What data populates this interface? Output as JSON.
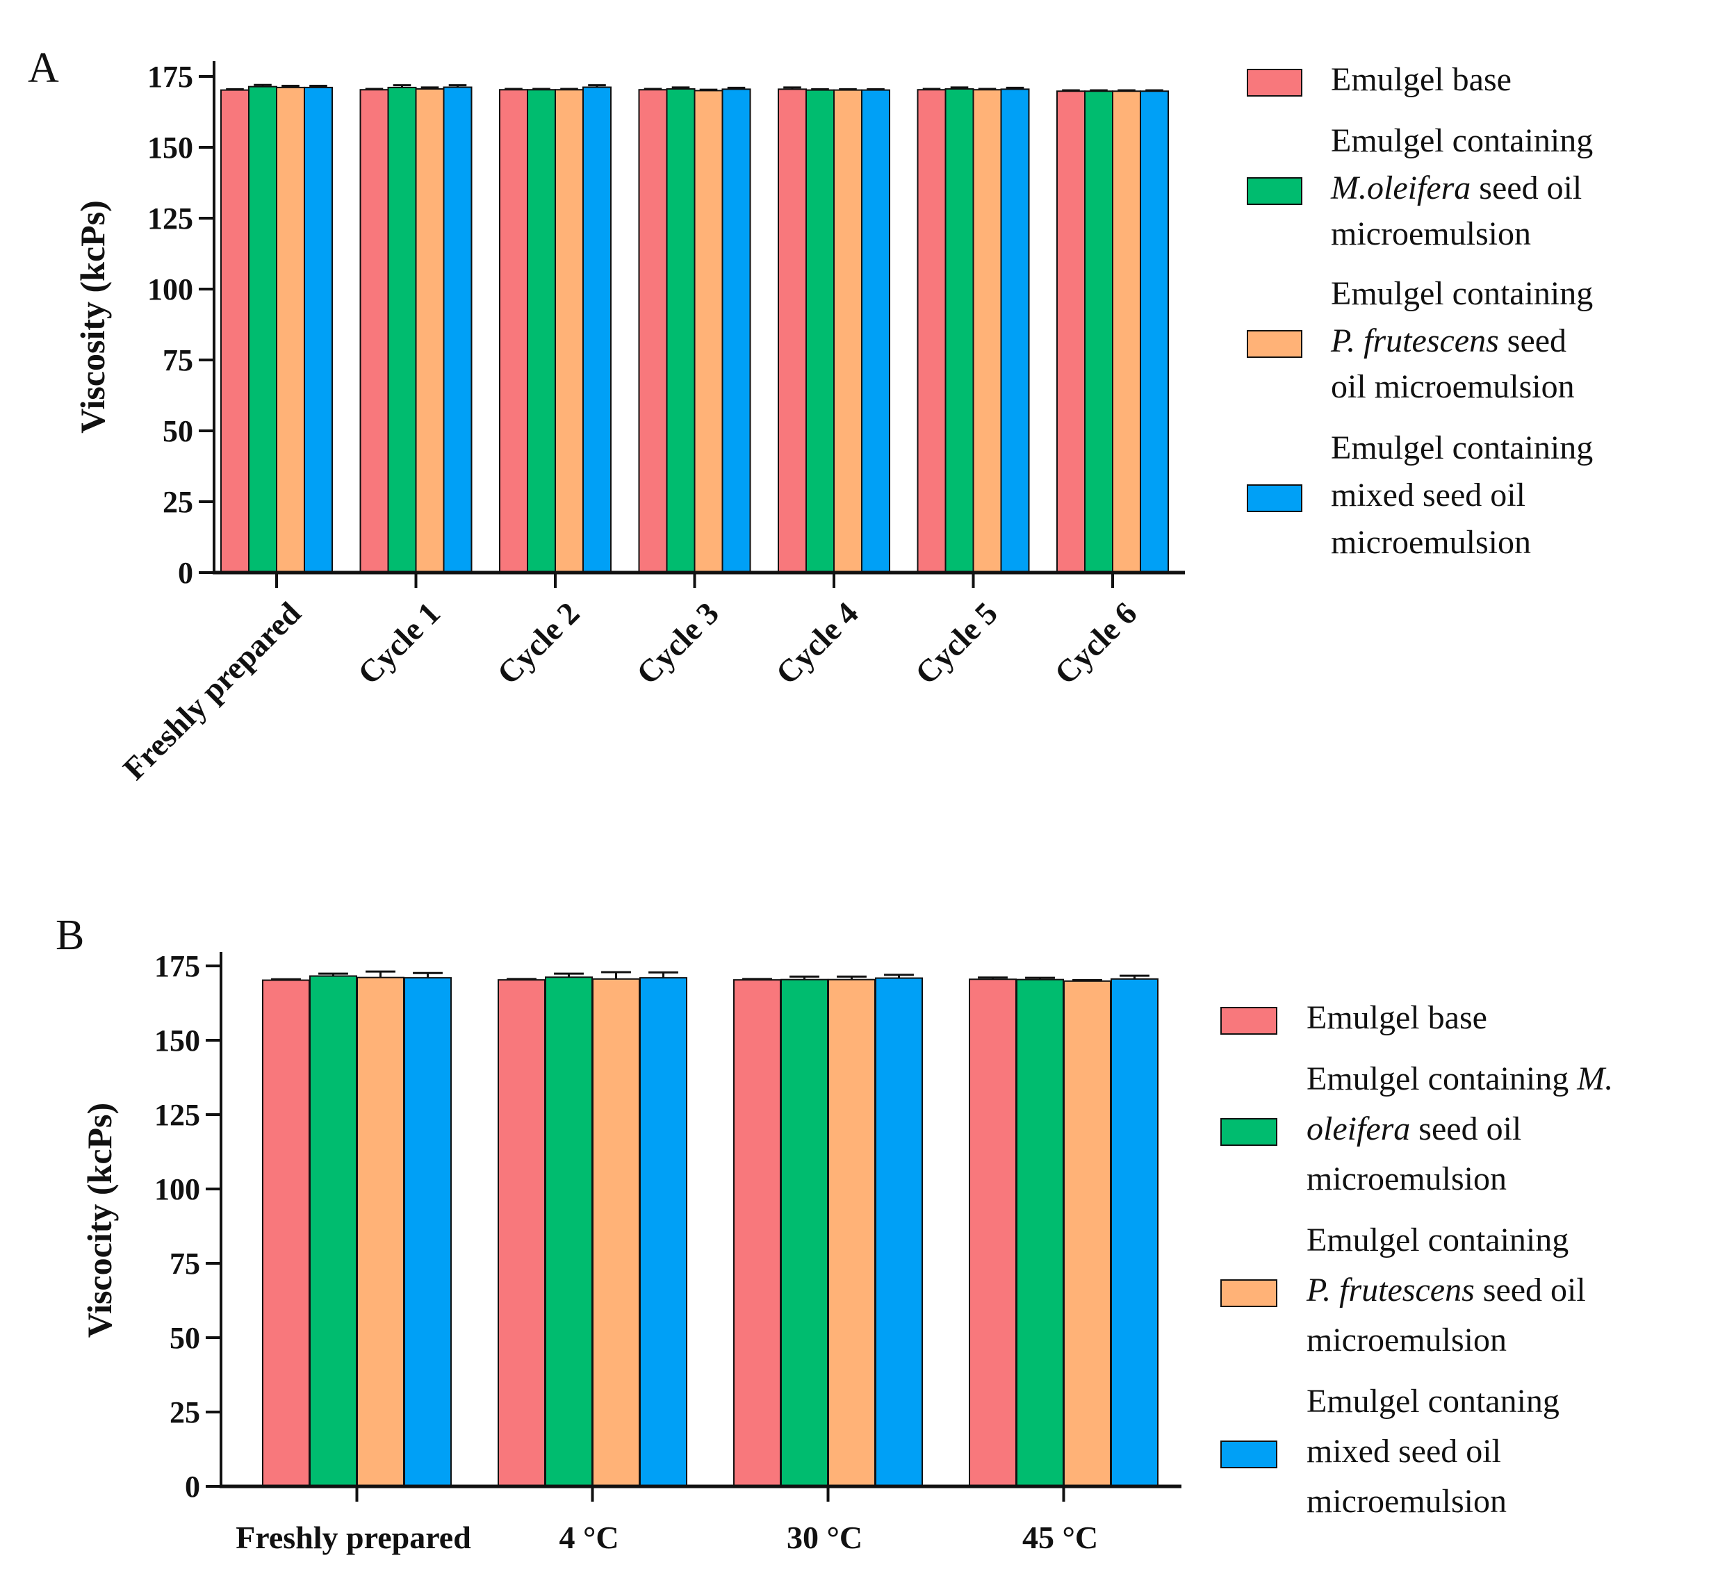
{
  "chart_data": [
    {
      "panel_label": "A",
      "type": "bar",
      "title": "",
      "ylabel": "Viscosity (kcPs)",
      "xlabel": "",
      "ylim": [
        0,
        175
      ],
      "yticks": [
        0,
        25,
        50,
        75,
        100,
        125,
        150,
        175
      ],
      "categories": [
        "Freshly prepared",
        "Cycle 1",
        "Cycle 2",
        "Cycle 3",
        "Cycle 4",
        "Cycle 5",
        "Cycle 6"
      ],
      "grid": false,
      "legend_position": "right",
      "series": [
        {
          "name": "Emulgel base",
          "color": "#F8787C",
          "values": [
            170.2,
            170.3,
            170.3,
            170.3,
            170.5,
            170.3,
            169.8
          ],
          "errors": [
            0.3,
            0.3,
            0.3,
            0.3,
            0.6,
            0.3,
            0.3
          ]
        },
        {
          "name": "Emulgel containing M.oleifera seed oil microemulsion",
          "color": "#00BC6F",
          "values": [
            171.4,
            171.1,
            170.3,
            170.6,
            170.2,
            170.6,
            169.8
          ],
          "errors": [
            0.6,
            0.8,
            0.3,
            0.5,
            0.3,
            0.5,
            0.3
          ]
        },
        {
          "name": "Emulgel containing P. frutescens seed oil microemulsion",
          "color": "#FFB277",
          "values": [
            171.1,
            170.6,
            170.3,
            170.0,
            170.2,
            170.3,
            169.8
          ],
          "errors": [
            0.6,
            0.5,
            0.3,
            0.3,
            0.3,
            0.3,
            0.3
          ]
        },
        {
          "name": "Emulgel containing mixed seed oil microemulsion",
          "color": "#00A0F6",
          "values": [
            171.1,
            171.2,
            171.2,
            170.5,
            170.2,
            170.5,
            169.8
          ],
          "errors": [
            0.6,
            0.7,
            0.7,
            0.5,
            0.3,
            0.5,
            0.3
          ]
        }
      ],
      "legend_lines": [
        [
          [
            "Emulgel base",
            "n"
          ]
        ],
        [
          [
            "Emulgel containing",
            "n"
          ]
        ],
        [
          [
            "M.oleifera",
            "i"
          ],
          [
            " seed oil",
            "n"
          ]
        ],
        [
          [
            "microemulsion",
            "n"
          ]
        ],
        [
          [
            "Emulgel containing",
            "n"
          ]
        ],
        [
          [
            "P. frutescens",
            "i"
          ],
          [
            " seed",
            "n"
          ]
        ],
        [
          [
            "oil microemulsion",
            "n"
          ]
        ],
        [
          [
            "Emulgel containing",
            "n"
          ]
        ],
        [
          [
            "mixed seed oil",
            "n"
          ]
        ],
        [
          [
            "microemulsion",
            "n"
          ]
        ]
      ]
    },
    {
      "panel_label": "B",
      "type": "bar",
      "title": "",
      "ylabel": "Viscocity (kcPs)",
      "xlabel": "",
      "ylim": [
        0,
        175
      ],
      "yticks": [
        0,
        25,
        50,
        75,
        100,
        125,
        150,
        175
      ],
      "categories": [
        "Freshly prepared",
        "4 °C",
        "30 °C",
        "45 °C"
      ],
      "grid": false,
      "legend_position": "right",
      "series": [
        {
          "name": "Emulgel base",
          "color": "#F8787C",
          "values": [
            170.2,
            170.3,
            170.3,
            170.5
          ],
          "errors": [
            0.3,
            0.3,
            0.3,
            0.6
          ]
        },
        {
          "name": "Emulgel containing M. oleifera seed oil microemulsion",
          "color": "#00BC6F",
          "values": [
            171.6,
            171.2,
            170.4,
            170.4
          ],
          "errors": [
            0.8,
            1.2,
            1.0,
            0.6
          ]
        },
        {
          "name": "Emulgel containing P. frutescens seed oil microemulsion",
          "color": "#FFB277",
          "values": [
            171.1,
            170.6,
            170.4,
            169.9
          ],
          "errors": [
            2.0,
            2.3,
            1.0,
            0.3
          ]
        },
        {
          "name": "Emulgel contaning mixed seed oil microemulsion",
          "color": "#00A0F6",
          "values": [
            171.0,
            171.0,
            170.9,
            170.6
          ],
          "errors": [
            1.6,
            1.8,
            1.1,
            1.1
          ]
        }
      ],
      "legend_lines": [
        [
          [
            "Emulgel base",
            "n"
          ]
        ],
        [
          [
            "Emulgel containing ",
            "n"
          ],
          [
            "M.",
            "i"
          ]
        ],
        [
          [
            "oleifera",
            "i"
          ],
          [
            " seed oil",
            "n"
          ]
        ],
        [
          [
            "microemulsion",
            "n"
          ]
        ],
        [
          [
            "Emulgel containing",
            "n"
          ]
        ],
        [
          [
            "P. frutescens",
            "i"
          ],
          [
            " seed oil",
            "n"
          ]
        ],
        [
          [
            "microemulsion",
            "n"
          ]
        ],
        [
          [
            "Emulgel contaning",
            "n"
          ]
        ],
        [
          [
            "mixed seed oil",
            "n"
          ]
        ],
        [
          [
            "microemulsion",
            "n"
          ]
        ]
      ]
    }
  ]
}
